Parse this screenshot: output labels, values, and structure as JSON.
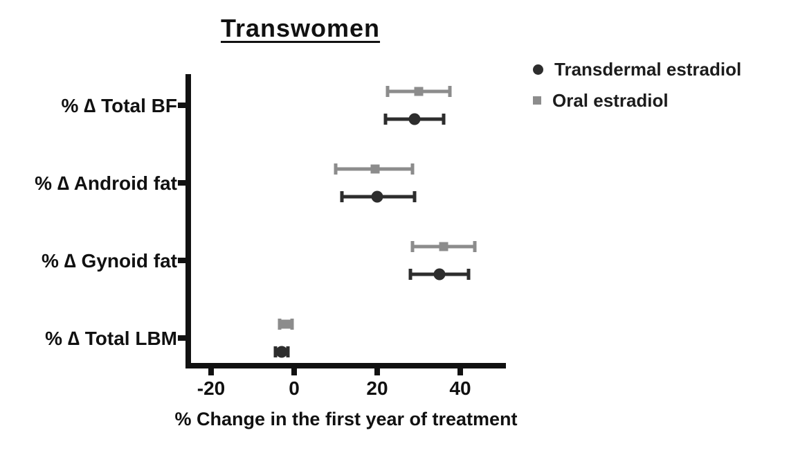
{
  "chart_data": {
    "type": "scatter",
    "title": "Transwomen",
    "xlabel": "% Change in the first year of treatment",
    "categories": [
      "% ∆ Total BF",
      "% ∆ Android fat",
      "% ∆ Gynoid fat",
      "% ∆ Total LBM"
    ],
    "x_ticks": [
      -20,
      0,
      20,
      40
    ],
    "xlim": [
      -26,
      51
    ],
    "grid": false,
    "legend_position": "top-right",
    "error_bar_style": "horizontal-ci-caps",
    "series": [
      {
        "name": "Transdermal estradiol",
        "marker": "circle",
        "color": "#2d2d2d",
        "values": [
          29,
          20,
          35,
          -3
        ],
        "ci_low": [
          22,
          11.5,
          28,
          -4.5
        ],
        "ci_high": [
          36,
          29,
          42,
          -1.5
        ]
      },
      {
        "name": "Oral estradiol",
        "marker": "square",
        "color": "#8c8c8c",
        "values": [
          30,
          19.5,
          36,
          -2
        ],
        "ci_low": [
          22.5,
          10,
          28.5,
          -3.5
        ],
        "ci_high": [
          37.5,
          28.5,
          43.5,
          -0.5
        ]
      }
    ]
  }
}
